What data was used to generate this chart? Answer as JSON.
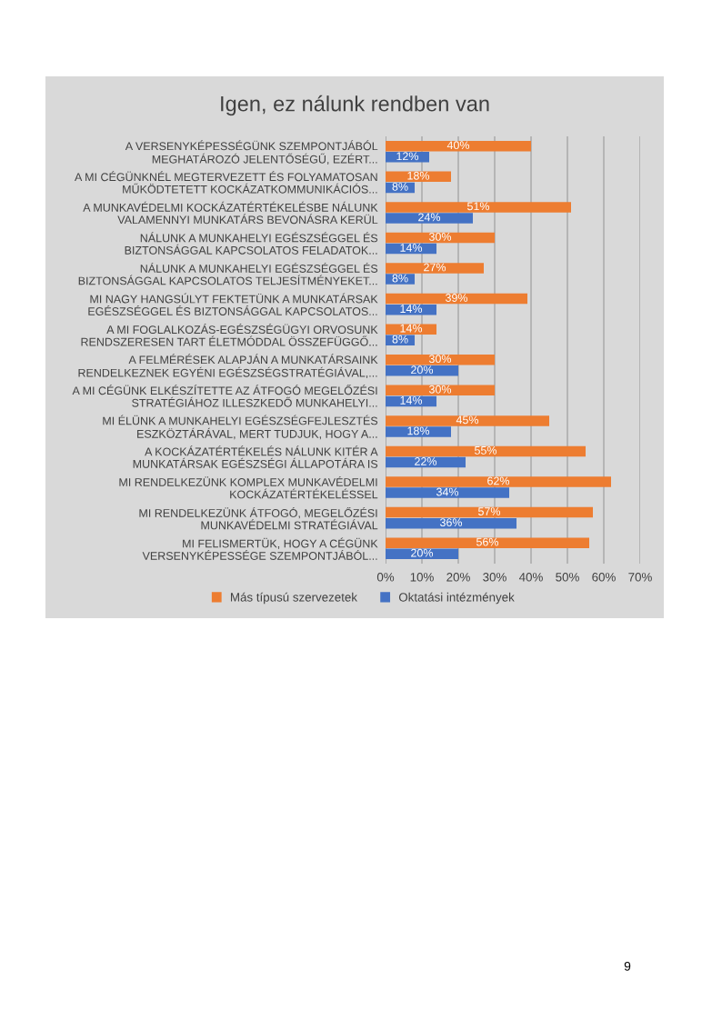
{
  "chart_data": {
    "type": "bar",
    "orientation": "horizontal",
    "title": "Igen, ez nálunk rendben van",
    "categories": [
      "A VERSENYKÉPESSÉGÜNK SZEMPONTJÁBÓL\nMEGHATÁROZÓ JELENTŐSÉGŰ, EZÉRT...",
      "A MI CÉGÜNKNÉL MEGTERVEZETT ÉS FOLYAMATOSAN\nMŰKÖDTETETT KOCKÁZATKOMMUNIKÁCIÓS...",
      "A MUNKAVÉDELMI KOCKÁZATÉRTÉKELÉSBE NÁLUNK\nVALAMENNYI MUNKATÁRS BEVONÁSRA KERÜL",
      "NÁLUNK A MUNKAHELYI EGÉSZSÉGGEL ÉS\nBIZTONSÁGGAL KAPCSOLATOS FELADATOK...",
      "NÁLUNK A MUNKAHELYI EGÉSZSÉGGEL ÉS\nBIZTONSÁGGAL KAPCSOLATOS TELJESÍTMÉNYEKET...",
      "MI NAGY HANGSÚLYT FEKTETÜNK A MUNKATÁRSAK\nEGÉSZSÉGGEL ÉS BIZTONSÁGGAL KAPCSOLATOS...",
      "A MI FOGLALKOZÁS-EGÉSZSÉGÜGYI ORVOSUNK\nRENDSZERESEN TART ÉLETMÓDDAL ÖSSZEFÜGGŐ...",
      "A FELMÉRÉSEK ALAPJÁN A MUNKATÁRSAINK\nRENDELKEZNEK EGYÉNI EGÉSZSÉGSTRATÉGIÁVAL,...",
      "A MI CÉGÜNK ELKÉSZÍTETTE AZ ÁTFOGÓ MEGELŐZÉSI\nSTRATÉGIÁHOZ ILLESZKEDŐ MUNKAHELYI...",
      "MI ÉLÜNK A MUNKAHELYI EGÉSZSÉGFEJLESZTÉS\nESZKÖZTÁRÁVAL, MERT TUDJUK, HOGY A...",
      "A KOCKÁZATÉRTÉKELÉS NÁLUNK KITÉR A\nMUNKATÁRSAK EGÉSZSÉGI ÁLLAPOTÁRA IS",
      "MI RENDELKEZÜNK KOMPLEX MUNKAVÉDELMI\nKOCKÁZATÉRTÉKELÉSSEL",
      "MI RENDELKEZÜNK ÁTFOGÓ, MEGELŐZÉSI\nMUNKAVÉDELMI STRATÉGIÁVAL",
      "MI FELISMERTÜK, HOGY A CÉGÜNK\nVERSENYKÉPESSÉGE SZEMPONTJÁBÓL..."
    ],
    "series": [
      {
        "name": "Más típusú szervezetek",
        "color": "#ed7d31",
        "values": [
          40,
          18,
          51,
          30,
          27,
          39,
          14,
          30,
          30,
          45,
          55,
          62,
          57,
          56
        ],
        "value_labels": [
          "40%",
          "18%",
          "51%",
          "30%",
          "27%",
          "39%",
          "14%",
          "30%",
          "30%",
          "45%",
          "55%",
          "62%",
          "57%",
          "56%"
        ]
      },
      {
        "name": "Oktatási intézmények",
        "color": "#4472c4",
        "values": [
          12,
          8,
          24,
          14,
          8,
          14,
          8,
          20,
          14,
          18,
          22,
          34,
          36,
          20
        ],
        "value_labels": [
          "12%",
          "8%",
          "24%",
          "14%",
          "8%",
          "14%",
          "8%",
          "20%",
          "14%",
          "18%",
          "22%",
          "34%",
          "36%",
          "20%"
        ]
      }
    ],
    "xlim": [
      0,
      70
    ],
    "xticks": [
      {
        "value": 0,
        "label": "0%"
      },
      {
        "value": 10,
        "label": "10%"
      },
      {
        "value": 20,
        "label": "20%"
      },
      {
        "value": 30,
        "label": "30%"
      },
      {
        "value": 40,
        "label": "40%"
      },
      {
        "value": 50,
        "label": "50%"
      },
      {
        "value": 60,
        "label": "60%"
      },
      {
        "value": 70,
        "label": "70%"
      }
    ],
    "grid": "x",
    "legend": "bottom",
    "annotations": [
      "9"
    ]
  }
}
